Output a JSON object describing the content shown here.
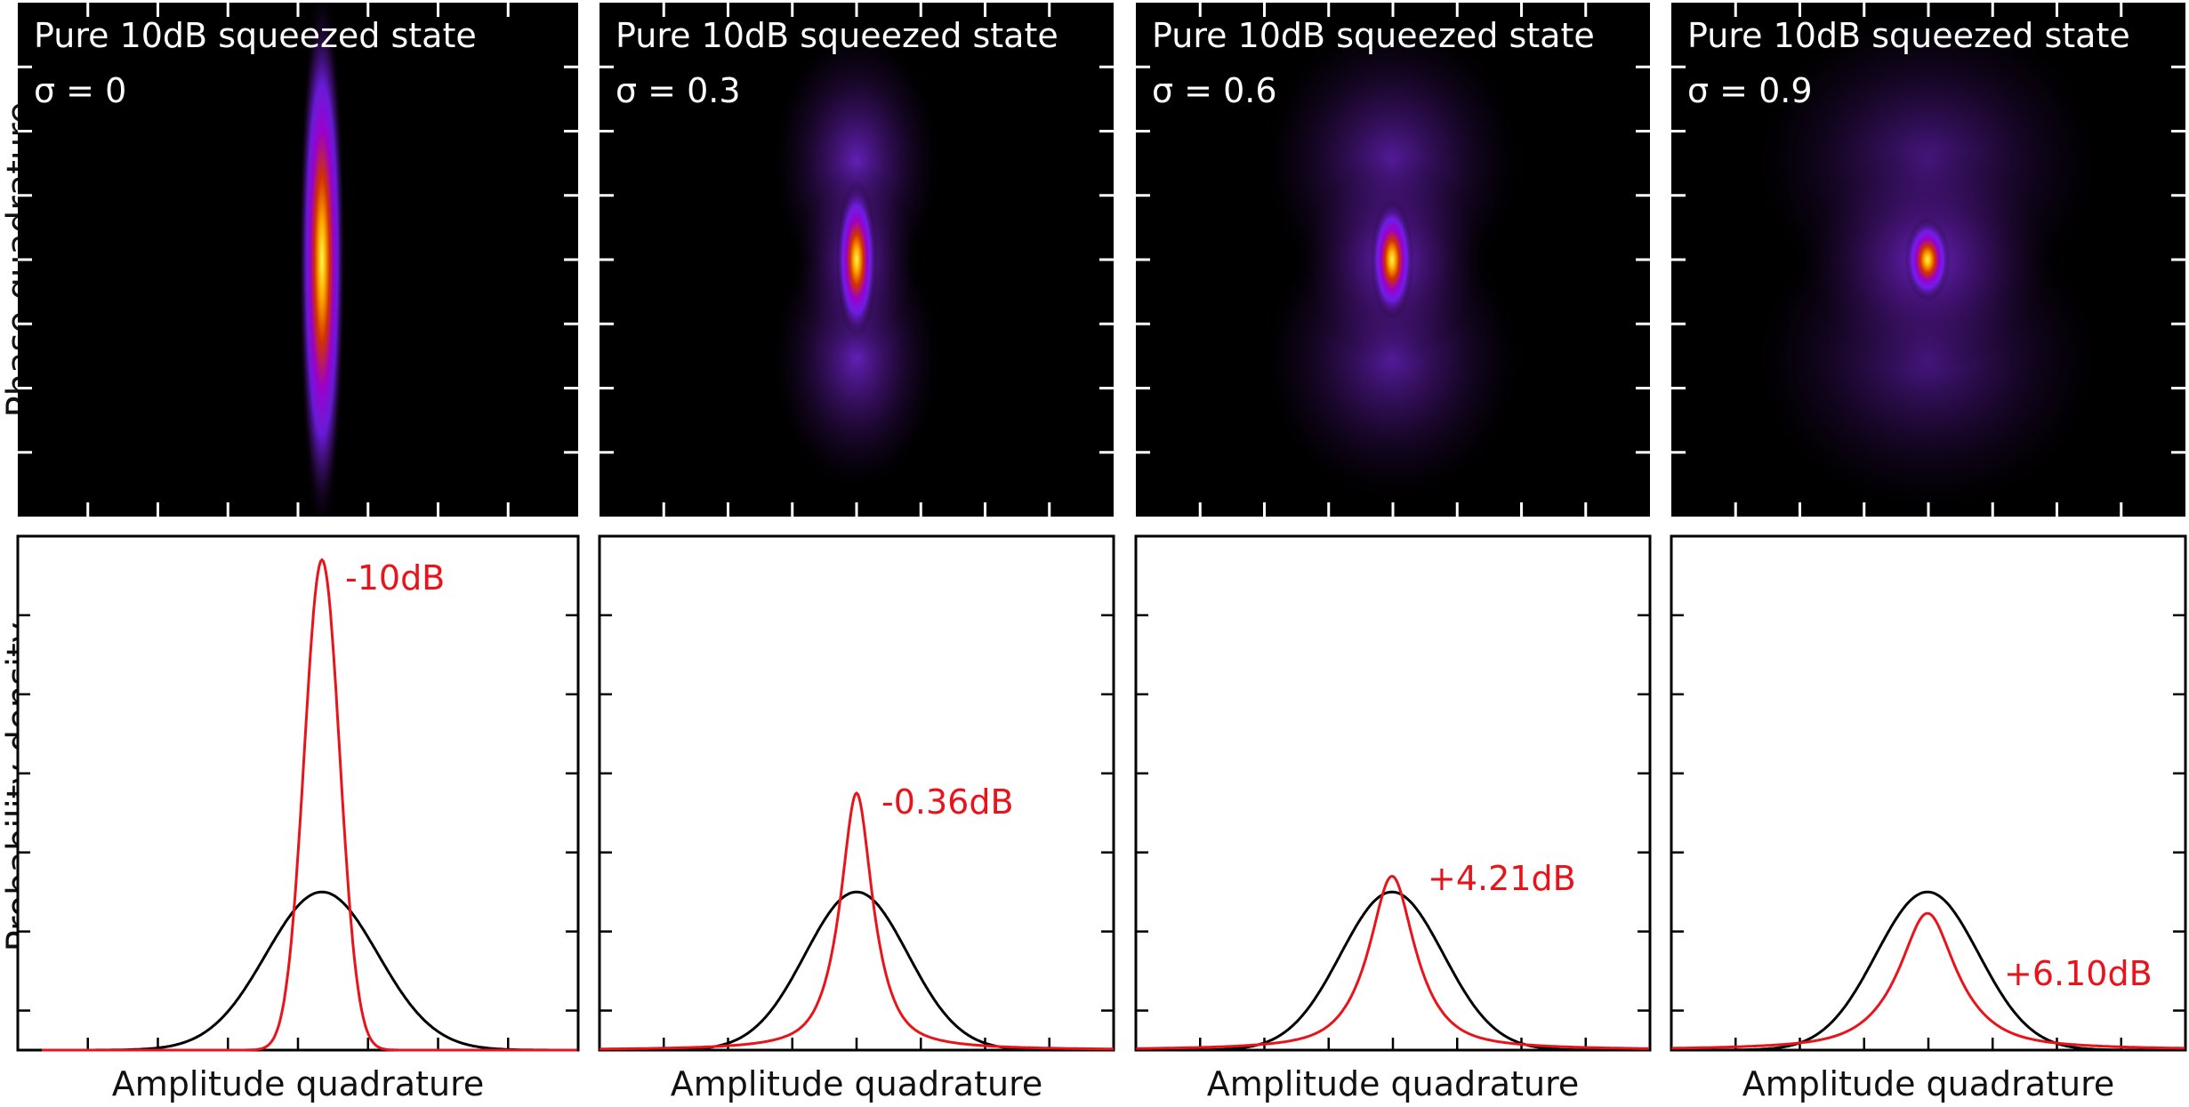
{
  "figure": {
    "y_label_top": "Phase quadrature",
    "y_label_bottom": "Probability density"
  },
  "chart_data": [
    {
      "type": "heatmap",
      "title": "Pure 10dB squeezed state",
      "param_label": "σ = 0",
      "sigma": 0,
      "colormap": "black-purple-red-yellow",
      "xlabel": "",
      "ylabel": "Phase quadrature",
      "grid": false
    },
    {
      "type": "heatmap",
      "title": "Pure 10dB squeezed state",
      "param_label": "σ = 0.3",
      "sigma": 0.3,
      "colormap": "black-purple-red-yellow",
      "xlabel": "",
      "ylabel": "",
      "grid": false
    },
    {
      "type": "heatmap",
      "title": "Pure 10dB squeezed state",
      "param_label": "σ = 0.6",
      "sigma": 0.6,
      "colormap": "black-purple-red-yellow",
      "xlabel": "",
      "ylabel": "",
      "grid": false
    },
    {
      "type": "heatmap",
      "title": "Pure 10dB squeezed state",
      "param_label": "σ = 0.9",
      "sigma": 0.9,
      "colormap": "black-purple-red-yellow",
      "xlabel": "",
      "ylabel": "",
      "grid": false
    },
    {
      "type": "line",
      "xlabel": "Amplitude quadrature",
      "ylabel": "Probability density",
      "annotation": "-10dB",
      "xlim": [
        -5,
        5
      ],
      "ylim": [
        0,
        6.5
      ],
      "grid": false,
      "series": [
        {
          "color": "#e8141b",
          "shape": "gaussian",
          "peak": 6.2,
          "width": 0.316
        },
        {
          "color": "#000000",
          "shape": "gaussian",
          "peak": 2.0,
          "width": 1.0
        }
      ]
    },
    {
      "type": "line",
      "xlabel": "Amplitude quadrature",
      "ylabel": "",
      "annotation": "-0.36dB",
      "xlim": [
        -5,
        5
      ],
      "ylim": [
        0,
        6.5
      ],
      "grid": false,
      "series": [
        {
          "color": "#e8141b",
          "shape": "lorentzian",
          "peak": 3.25,
          "width": 0.42
        },
        {
          "color": "#000000",
          "shape": "gaussian",
          "peak": 2.0,
          "width": 1.0
        }
      ]
    },
    {
      "type": "line",
      "xlabel": "Amplitude quadrature",
      "ylabel": "",
      "annotation": "+4.21dB",
      "xlim": [
        -5,
        5
      ],
      "ylim": [
        0,
        6.5
      ],
      "grid": false,
      "series": [
        {
          "color": "#e8141b",
          "shape": "lorentzian",
          "peak": 2.2,
          "width": 0.6
        },
        {
          "color": "#000000",
          "shape": "gaussian",
          "peak": 2.0,
          "width": 1.0
        }
      ]
    },
    {
      "type": "line",
      "xlabel": "Amplitude quadrature",
      "ylabel": "",
      "annotation": "+6.10dB",
      "xlim": [
        -5,
        5
      ],
      "ylim": [
        0,
        6.5
      ],
      "grid": false,
      "series": [
        {
          "color": "#e8141b",
          "shape": "lorentzian",
          "peak": 1.73,
          "width": 0.75
        },
        {
          "color": "#000000",
          "shape": "gaussian",
          "peak": 2.0,
          "width": 1.0
        }
      ]
    }
  ]
}
